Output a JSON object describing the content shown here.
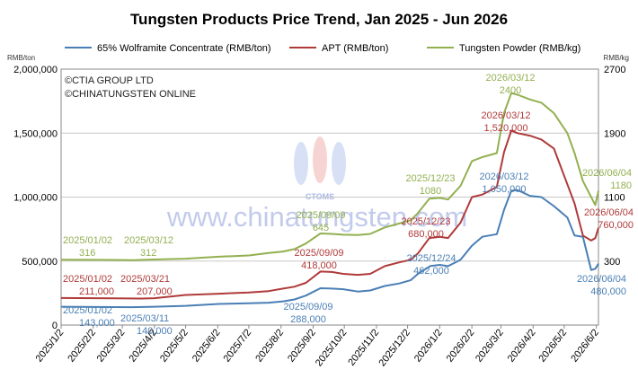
{
  "chart_data": {
    "type": "line",
    "title": "Tungsten Products Price Trend, Jan 2025 - Jun 2026",
    "y_left_unit": "RMB/ton",
    "y_right_unit": "RMB/kg",
    "ylim_left": [
      0,
      2000000
    ],
    "ylim_right": [
      -500,
      2700
    ],
    "y_left_ticks": [
      "0",
      "500,000",
      "1,000,000",
      "1,500,000",
      "2,000,000"
    ],
    "y_right_ticks": [
      "300",
      "1100",
      "1900",
      "2700"
    ],
    "x_ticks": [
      "2025/1/2",
      "2025/2/2",
      "2025/3/2",
      "2025/4/2",
      "2025/5/2",
      "2025/6/2",
      "2025/7/2",
      "2025/8/2",
      "2025/9/2",
      "2025/10/2",
      "2025/11/2",
      "2025/12/2",
      "2026/1/2",
      "2026/2/2",
      "2026/3/2",
      "2026/4/2",
      "2026/5/2",
      "2026/6/2"
    ],
    "grid": true,
    "legend_position": "top",
    "copyright": [
      "©CTIA GROUP LTD",
      "©CHINATUNGSTEN ONLINE"
    ],
    "watermark": {
      "text": "www.chinatungsten.com",
      "logo_text": "CTOMS"
    },
    "series": [
      {
        "name": "65% Wolframite Concentrate (RMB/ton)",
        "axis": "left",
        "color": "#4a7fb5",
        "points": [
          [
            "2025-01-02",
            143000
          ],
          [
            "2025-02-05",
            141000
          ],
          [
            "2025-03-11",
            140000
          ],
          [
            "2025-04-02",
            143000
          ],
          [
            "2025-05-02",
            150000
          ],
          [
            "2025-06-03",
            165000
          ],
          [
            "2025-07-02",
            170000
          ],
          [
            "2025-07-21",
            175000
          ],
          [
            "2025-08-04",
            185000
          ],
          [
            "2025-08-15",
            200000
          ],
          [
            "2025-08-26",
            230000
          ],
          [
            "2025-09-09",
            288000
          ],
          [
            "2025-09-20",
            285000
          ],
          [
            "2025-10-01",
            280000
          ],
          [
            "2025-10-15",
            262000
          ],
          [
            "2025-10-27",
            270000
          ],
          [
            "2025-11-10",
            305000
          ],
          [
            "2025-11-24",
            325000
          ],
          [
            "2025-12-05",
            350000
          ],
          [
            "2025-12-12",
            400000
          ],
          [
            "2025-12-24",
            462000
          ],
          [
            "2026-01-02",
            470000
          ],
          [
            "2026-01-10",
            460000
          ],
          [
            "2026-01-22",
            510000
          ],
          [
            "2026-02-02",
            620000
          ],
          [
            "2026-02-12",
            690000
          ],
          [
            "2026-02-26",
            710000
          ],
          [
            "2026-03-05",
            900000
          ],
          [
            "2026-03-12",
            1050000
          ],
          [
            "2026-03-18",
            1055000
          ],
          [
            "2026-03-30",
            1010000
          ],
          [
            "2026-04-10",
            1000000
          ],
          [
            "2026-04-22",
            930000
          ],
          [
            "2026-05-05",
            840000
          ],
          [
            "2026-05-12",
            700000
          ],
          [
            "2026-05-20",
            690000
          ],
          [
            "2026-05-28",
            430000
          ],
          [
            "2026-06-01",
            440000
          ],
          [
            "2026-06-04",
            480000
          ]
        ],
        "annotations": [
          {
            "date": "2025-01-02",
            "label": "2025/01/02",
            "value_label": "143,000"
          },
          {
            "date": "2025-03-11",
            "label": "2025/03/11",
            "value_label": "140,000"
          },
          {
            "date": "2025-09-09",
            "label": "2025/09/09",
            "value_label": "288,000"
          },
          {
            "date": "2025-12-24",
            "label": "2025/12/24",
            "value_label": "462,000"
          },
          {
            "date": "2026-03-12",
            "label": "2026/03/12",
            "value_label": "1,050,000"
          },
          {
            "date": "2026-06-04",
            "label": "2026/06/04",
            "value_label": "480,000"
          }
        ]
      },
      {
        "name": "APT (RMB/ton)",
        "axis": "left",
        "color": "#b03a3a",
        "points": [
          [
            "2025-01-02",
            211000
          ],
          [
            "2025-02-05",
            210000
          ],
          [
            "2025-03-21",
            207000
          ],
          [
            "2025-04-02",
            210000
          ],
          [
            "2025-05-02",
            235000
          ],
          [
            "2025-06-03",
            245000
          ],
          [
            "2025-07-02",
            255000
          ],
          [
            "2025-07-21",
            265000
          ],
          [
            "2025-08-04",
            285000
          ],
          [
            "2025-08-15",
            300000
          ],
          [
            "2025-08-26",
            330000
          ],
          [
            "2025-09-09",
            418000
          ],
          [
            "2025-09-20",
            415000
          ],
          [
            "2025-10-01",
            400000
          ],
          [
            "2025-10-15",
            392000
          ],
          [
            "2025-10-27",
            400000
          ],
          [
            "2025-11-10",
            460000
          ],
          [
            "2025-11-24",
            490000
          ],
          [
            "2025-12-05",
            510000
          ],
          [
            "2025-12-12",
            560000
          ],
          [
            "2025-12-23",
            680000
          ],
          [
            "2026-01-02",
            690000
          ],
          [
            "2026-01-10",
            680000
          ],
          [
            "2026-01-22",
            800000
          ],
          [
            "2026-02-02",
            1000000
          ],
          [
            "2026-02-12",
            1020000
          ],
          [
            "2026-02-26",
            1080000
          ],
          [
            "2026-03-05",
            1350000
          ],
          [
            "2026-03-12",
            1520000
          ],
          [
            "2026-03-18",
            1500000
          ],
          [
            "2026-03-30",
            1480000
          ],
          [
            "2026-04-10",
            1450000
          ],
          [
            "2026-04-22",
            1380000
          ],
          [
            "2026-05-05",
            1100000
          ],
          [
            "2026-05-12",
            950000
          ],
          [
            "2026-05-20",
            700000
          ],
          [
            "2026-05-28",
            660000
          ],
          [
            "2026-06-01",
            680000
          ],
          [
            "2026-06-04",
            760000
          ]
        ],
        "annotations": [
          {
            "date": "2025-01-02",
            "label": "2025/01/02",
            "value_label": "211,000"
          },
          {
            "date": "2025-03-21",
            "label": "2025/03/21",
            "value_label": "207,000"
          },
          {
            "date": "2025-09-09",
            "label": "2025/09/09",
            "value_label": "418,000"
          },
          {
            "date": "2025-12-23",
            "label": "2025/12/23",
            "value_label": "680,000"
          },
          {
            "date": "2026-03-12",
            "label": "2026/03/12",
            "value_label": "1,520,000"
          },
          {
            "date": "2026-06-04",
            "label": "2026/06/04",
            "value_label": "760,000"
          }
        ]
      },
      {
        "name": "Tungsten Powder (RMB/kg)",
        "axis": "right",
        "color": "#92b050",
        "points": [
          [
            "2025-01-02",
            316
          ],
          [
            "2025-02-05",
            315
          ],
          [
            "2025-03-12",
            312
          ],
          [
            "2025-04-02",
            320
          ],
          [
            "2025-05-02",
            330
          ],
          [
            "2025-06-03",
            355
          ],
          [
            "2025-07-02",
            370
          ],
          [
            "2025-07-21",
            400
          ],
          [
            "2025-08-04",
            420
          ],
          [
            "2025-08-15",
            450
          ],
          [
            "2025-08-26",
            520
          ],
          [
            "2025-09-09",
            645
          ],
          [
            "2025-09-20",
            640
          ],
          [
            "2025-10-01",
            630
          ],
          [
            "2025-10-15",
            625
          ],
          [
            "2025-10-27",
            640
          ],
          [
            "2025-11-10",
            720
          ],
          [
            "2025-11-24",
            770
          ],
          [
            "2025-12-05",
            810
          ],
          [
            "2025-12-12",
            900
          ],
          [
            "2025-12-23",
            1080
          ],
          [
            "2026-01-02",
            1090
          ],
          [
            "2026-01-10",
            1070
          ],
          [
            "2026-01-22",
            1240
          ],
          [
            "2026-02-02",
            1550
          ],
          [
            "2026-02-12",
            1600
          ],
          [
            "2026-02-26",
            1650
          ],
          [
            "2026-03-05",
            2150
          ],
          [
            "2026-03-12",
            2400
          ],
          [
            "2026-03-18",
            2380
          ],
          [
            "2026-03-30",
            2320
          ],
          [
            "2026-04-10",
            2280
          ],
          [
            "2026-04-22",
            2150
          ],
          [
            "2026-05-05",
            1900
          ],
          [
            "2026-05-12",
            1650
          ],
          [
            "2026-05-20",
            1300
          ],
          [
            "2026-05-28",
            1100
          ],
          [
            "2026-06-01",
            1000
          ],
          [
            "2026-06-04",
            1180
          ]
        ],
        "annotations": [
          {
            "date": "2025-01-02",
            "label": "2025/01/02",
            "value_label": "316"
          },
          {
            "date": "2025-03-12",
            "label": "2025/03/12",
            "value_label": "312"
          },
          {
            "date": "2025-09-09",
            "label": "2025/09/09",
            "value_label": "645"
          },
          {
            "date": "2025-12-23",
            "label": "2025/12/23",
            "value_label": "1080"
          },
          {
            "date": "2026-03-12",
            "label": "2026/03/12",
            "value_label": "2400"
          },
          {
            "date": "2026-06-04",
            "label": "2026/06/04",
            "value_label": "1180"
          }
        ]
      }
    ]
  }
}
